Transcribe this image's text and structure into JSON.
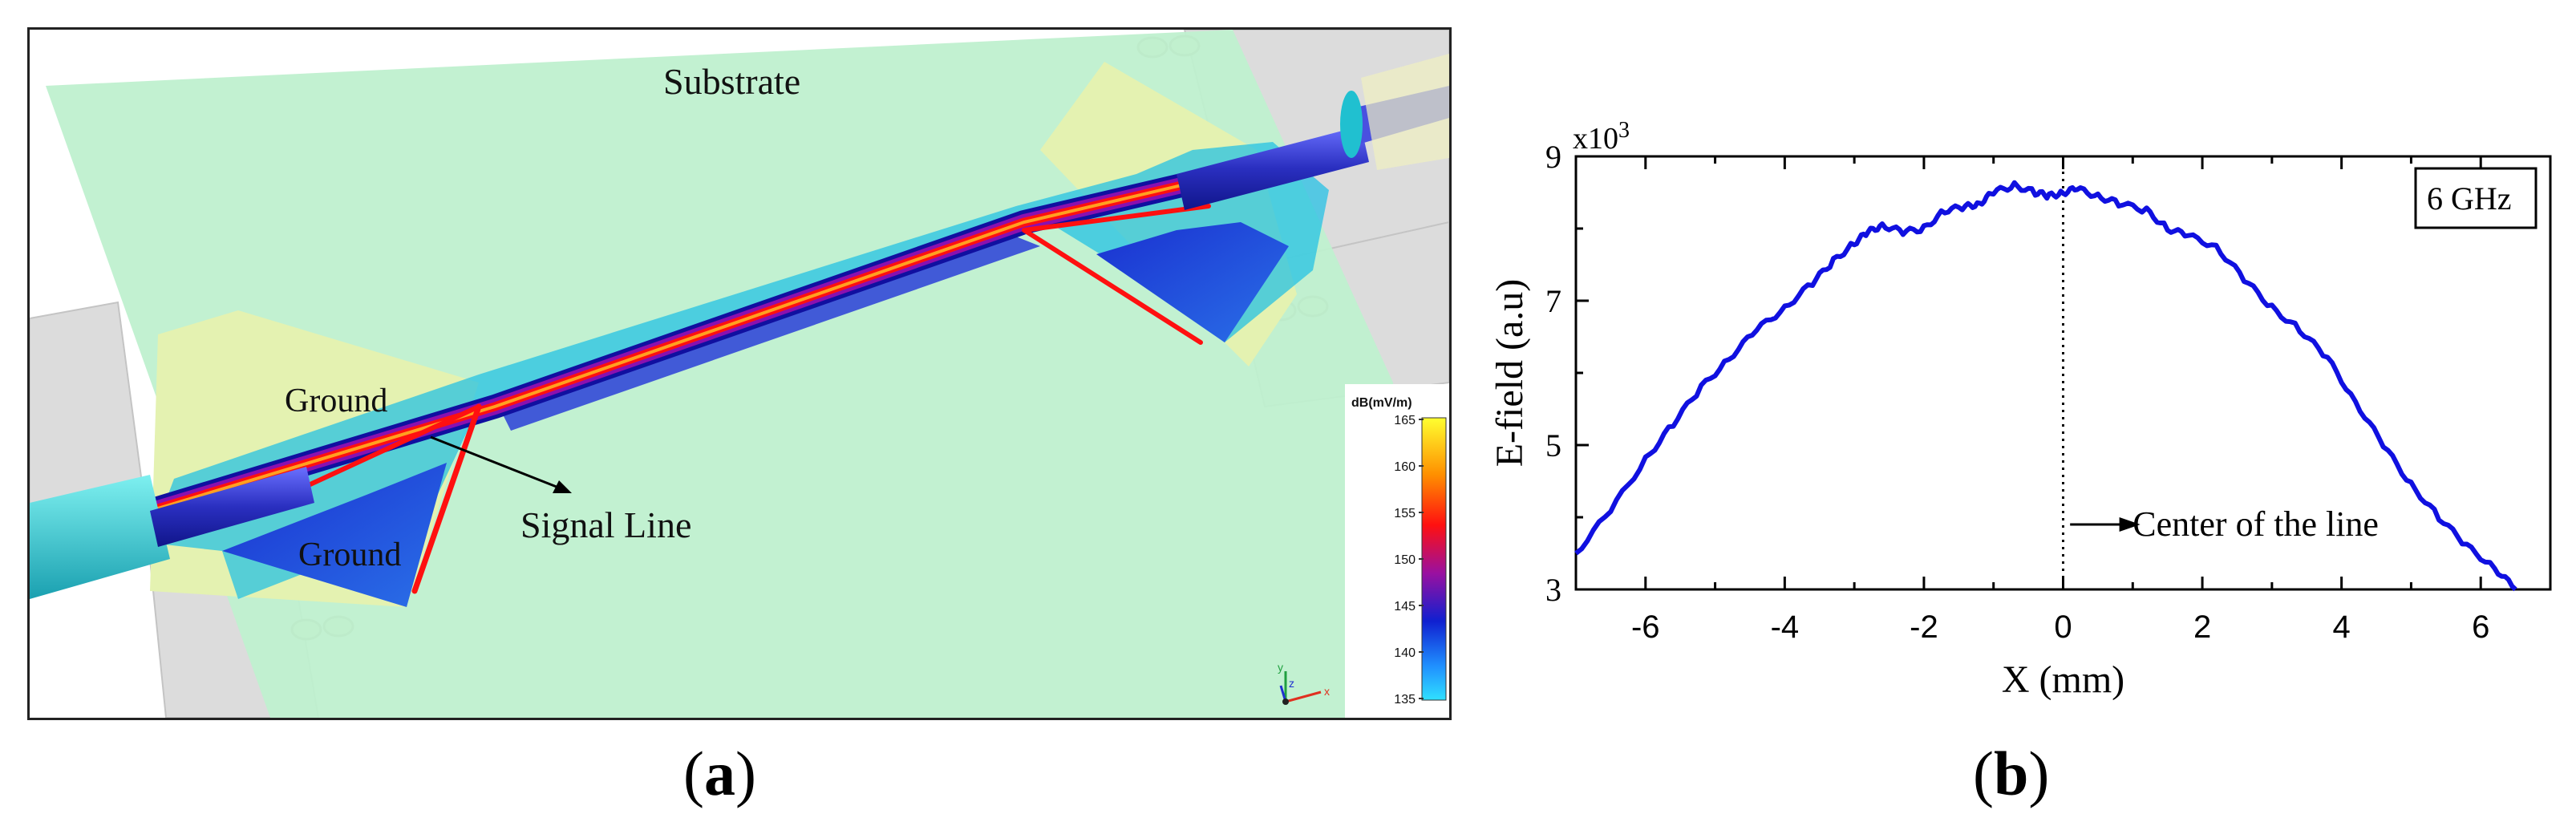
{
  "panel_a": {
    "labels": {
      "substrate": "Substrate",
      "ground_top": "Ground",
      "ground_bottom": "Ground",
      "signal_line": "Signal Line"
    },
    "colorbar": {
      "unit": "dB(mV/m)",
      "ticks": [
        "165",
        "160",
        "155",
        "150",
        "145",
        "140",
        "135"
      ]
    },
    "axes_triad": {
      "y": "y",
      "z": "z",
      "x": "x"
    },
    "colors": {
      "substrate": "#bff0cf",
      "ground_pad": "#e4f2b1",
      "field_low": "#00c8e8",
      "field_mid": "#1a2fd0",
      "field_high": "#ff2a00"
    }
  },
  "captions": {
    "a": "a",
    "b": "b"
  },
  "chart_data": {
    "type": "line",
    "xlabel": "X (mm)",
    "ylabel": "E-field (a.u)",
    "ylabel_multiplier": "x10",
    "ylabel_multiplier_exp": "3",
    "xlim": [
      -7,
      7
    ],
    "ylim": [
      3,
      9
    ],
    "xticks": [
      -6,
      -4,
      -2,
      0,
      2,
      4,
      6
    ],
    "ytick_labels": [
      "3",
      "5",
      "7",
      "9"
    ],
    "xtick_labels": [
      "-6",
      "-4",
      "-2",
      "0",
      "2",
      "4",
      "6"
    ],
    "annotation_box": "6 GHz",
    "annotation_center": "Center of the line",
    "line_color": "#1010e0",
    "x": [
      -7.0,
      -6.5,
      -6.0,
      -5.6,
      -5.2,
      -4.8,
      -4.4,
      -4.0,
      -3.6,
      -3.3,
      -3.0,
      -2.8,
      -2.6,
      -2.3,
      -2.0,
      -1.7,
      -1.4,
      -1.2,
      -1.0,
      -0.7,
      -0.4,
      -0.2,
      0.0,
      0.2,
      0.5,
      0.8,
      1.2,
      1.5,
      1.8,
      2.2,
      2.6,
      3.0,
      3.4,
      3.8,
      4.2,
      4.6,
      5.0,
      5.4,
      5.8,
      6.2,
      6.5
    ],
    "y": [
      3.5,
      4.1,
      4.8,
      5.3,
      5.8,
      6.2,
      6.6,
      6.9,
      7.25,
      7.55,
      7.8,
      7.95,
      8.05,
      7.95,
      8.0,
      8.25,
      8.3,
      8.35,
      8.5,
      8.6,
      8.5,
      8.45,
      8.5,
      8.55,
      8.45,
      8.35,
      8.25,
      8.0,
      7.9,
      7.75,
      7.3,
      6.9,
      6.6,
      6.2,
      5.6,
      5.0,
      4.45,
      4.0,
      3.6,
      3.3,
      3.0
    ]
  }
}
